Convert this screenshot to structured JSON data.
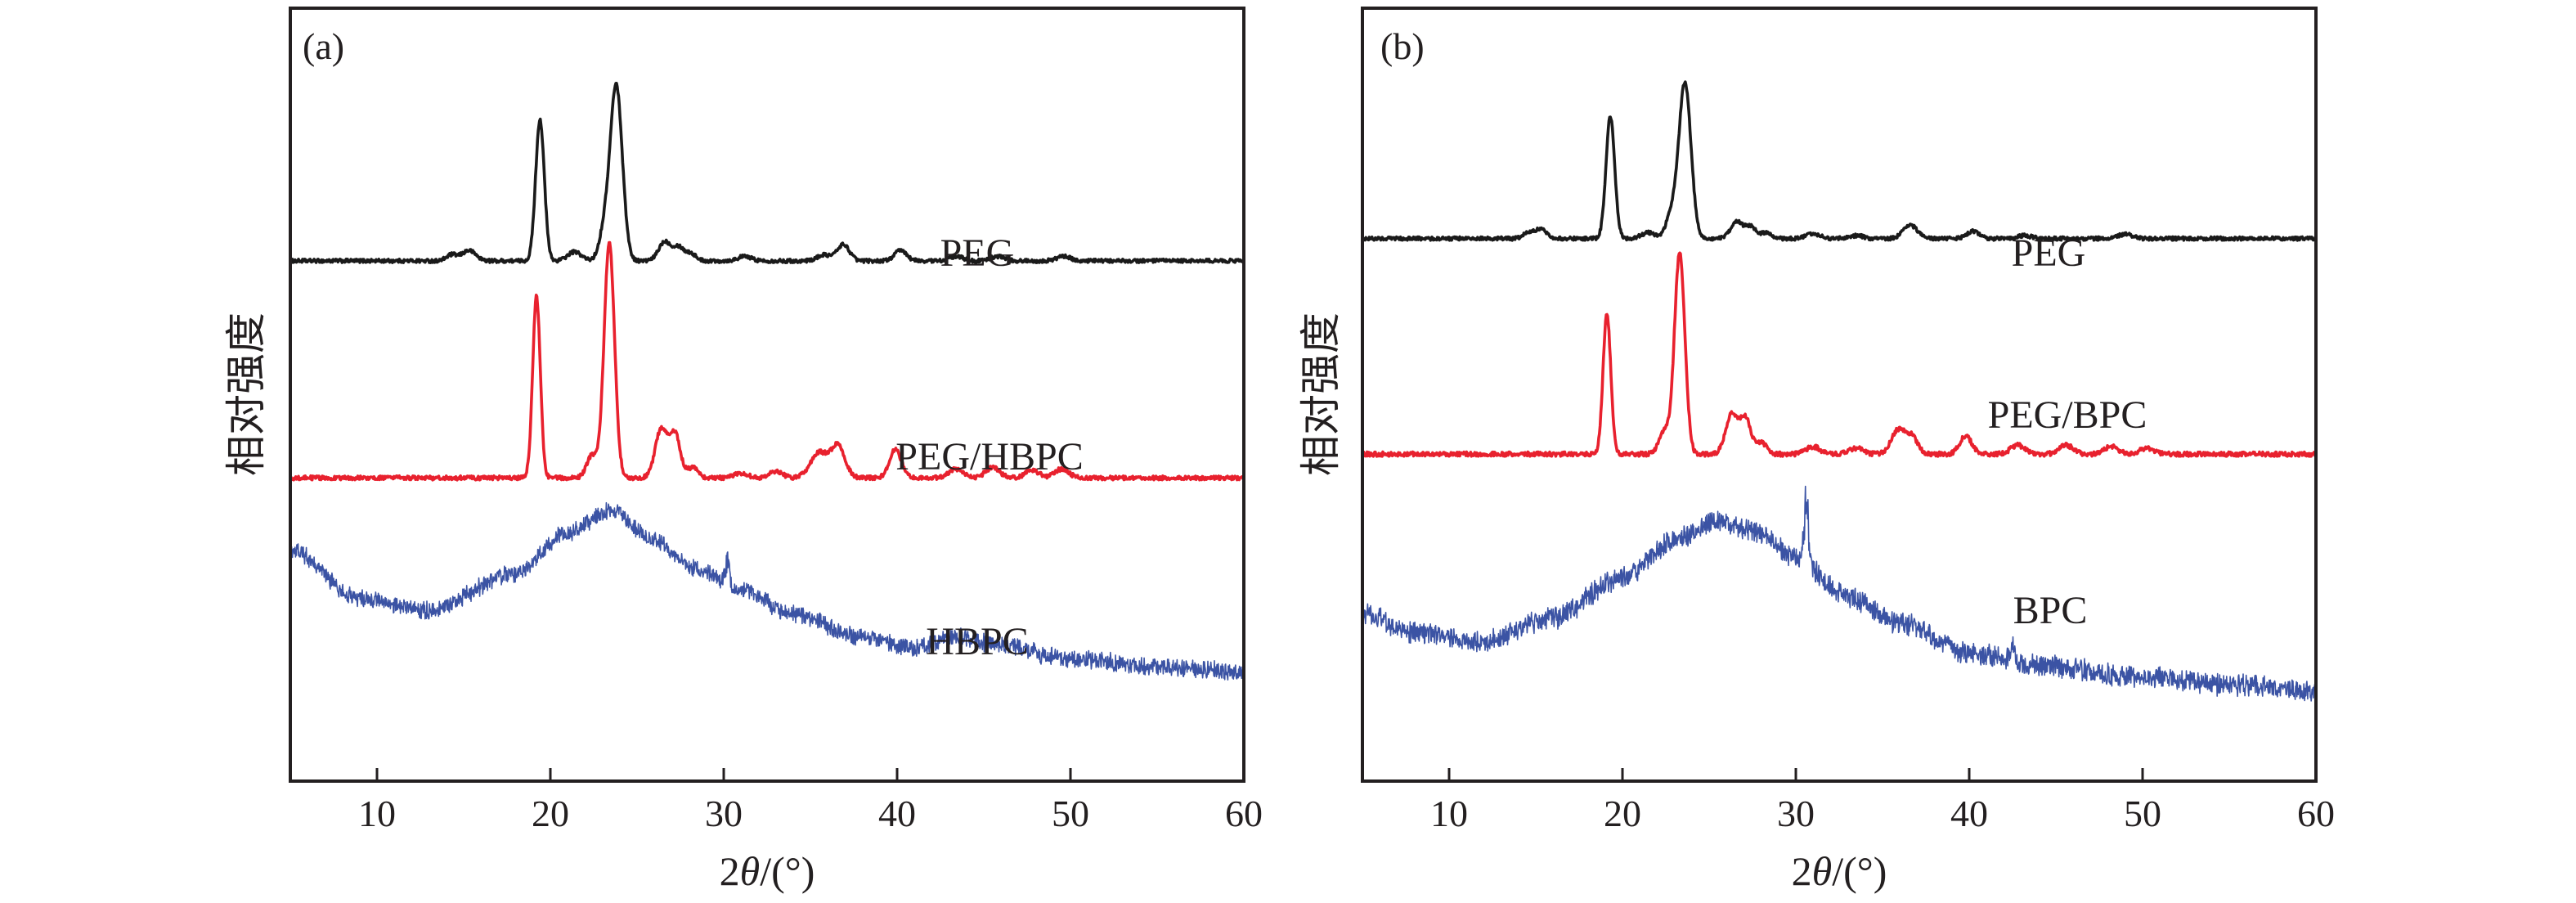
{
  "chart_data": [
    {
      "panel": "a",
      "type": "line",
      "panel_label": "(a)",
      "xlabel": "2θ/(°)",
      "xlabel_parts": {
        "prefix": "2",
        "italic": "θ",
        "suffix": "/(°)"
      },
      "ylabel": "相对强度",
      "xlim": [
        5,
        60
      ],
      "xticks": [
        10,
        20,
        30,
        40,
        50,
        60
      ],
      "y_axis": "arbitrary units, no tick labels; traces vertically offset",
      "grid": false,
      "series": [
        {
          "name": "PEG",
          "color": "#1a1a1a",
          "style": "crystalline",
          "baseline": 0.0,
          "peaks": [
            [
              14.3,
              0.04,
              0.3
            ],
            [
              15.3,
              0.07,
              0.4
            ],
            [
              19.4,
              0.95,
              0.25
            ],
            [
              21.4,
              0.06,
              0.4
            ],
            [
              23.8,
              1.18,
              0.35
            ],
            [
              23.1,
              0.18,
              0.3
            ],
            [
              26.6,
              0.13,
              0.35
            ],
            [
              27.4,
              0.09,
              0.3
            ],
            [
              28.1,
              0.05,
              0.3
            ],
            [
              31.2,
              0.03,
              0.4
            ],
            [
              35.8,
              0.04,
              0.4
            ],
            [
              36.9,
              0.11,
              0.35
            ],
            [
              40.2,
              0.07,
              0.35
            ],
            [
              43.4,
              0.03,
              0.4
            ],
            [
              45.8,
              0.03,
              0.4
            ],
            [
              49.6,
              0.03,
              0.4
            ]
          ],
          "noise": 0.012
        },
        {
          "name": "PEG/HBPC",
          "color": "#e8212e",
          "style": "crystalline",
          "baseline": -1.46,
          "peaks": [
            [
              19.2,
              1.22,
              0.22
            ],
            [
              23.4,
              1.58,
              0.3
            ],
            [
              22.4,
              0.15,
              0.3
            ],
            [
              26.4,
              0.33,
              0.35
            ],
            [
              27.2,
              0.29,
              0.3
            ],
            [
              28.2,
              0.07,
              0.3
            ],
            [
              31.0,
              0.03,
              0.4
            ],
            [
              33.0,
              0.04,
              0.4
            ],
            [
              35.5,
              0.17,
              0.5
            ],
            [
              36.6,
              0.21,
              0.4
            ],
            [
              39.9,
              0.19,
              0.35
            ],
            [
              43.4,
              0.06,
              0.4
            ],
            [
              45.5,
              0.07,
              0.4
            ],
            [
              47.8,
              0.05,
              0.4
            ],
            [
              49.5,
              0.06,
              0.4
            ]
          ],
          "noise": 0.014
        },
        {
          "name": "HBPC",
          "color": "#3b53a4",
          "style": "amorphous",
          "baseline": -2.65,
          "hump": [
            [
              5,
              0.7
            ],
            [
              9,
              0.38
            ],
            [
              13,
              0.3
            ],
            [
              18,
              0.55
            ],
            [
              21,
              0.82
            ],
            [
              23.5,
              0.97
            ],
            [
              26,
              0.77
            ],
            [
              28.5,
              0.57
            ],
            [
              31,
              0.43
            ],
            [
              34,
              0.28
            ],
            [
              38,
              0.12
            ],
            [
              41,
              0.04
            ],
            [
              43.5,
              0.13
            ],
            [
              46,
              0.06
            ],
            [
              50,
              -0.03
            ],
            [
              55,
              -0.08
            ],
            [
              60,
              -0.11
            ]
          ],
          "spikes": [
            [
              30.2,
              0.17
            ]
          ],
          "noise": 0.05
        }
      ],
      "ylim": [
        -3.5,
        1.7
      ]
    },
    {
      "panel": "b",
      "type": "line",
      "panel_label": "(b)",
      "xlabel": "2θ/(°)",
      "xlabel_parts": {
        "prefix": "2",
        "italic": "θ",
        "suffix": "/(°)"
      },
      "ylabel": "相对强度",
      "xlim": [
        5,
        60
      ],
      "xticks": [
        10,
        20,
        30,
        40,
        50,
        60
      ],
      "y_axis": "arbitrary units, no tick labels; traces vertically offset",
      "grid": false,
      "series": [
        {
          "name": "PEG",
          "color": "#1a1a1a",
          "style": "crystalline",
          "baseline": 0.0,
          "peaks": [
            [
              14.6,
              0.04,
              0.3
            ],
            [
              15.3,
              0.06,
              0.35
            ],
            [
              19.3,
              0.82,
              0.25
            ],
            [
              21.5,
              0.04,
              0.4
            ],
            [
              23.6,
              1.05,
              0.35
            ],
            [
              22.8,
              0.15,
              0.3
            ],
            [
              26.6,
              0.11,
              0.35
            ],
            [
              27.4,
              0.08,
              0.3
            ],
            [
              28.3,
              0.04,
              0.3
            ],
            [
              31.0,
              0.03,
              0.4
            ],
            [
              33.5,
              0.02,
              0.4
            ],
            [
              36.6,
              0.09,
              0.4
            ],
            [
              40.2,
              0.05,
              0.35
            ],
            [
              43.2,
              0.02,
              0.4
            ],
            [
              49.0,
              0.03,
              0.4
            ]
          ],
          "noise": 0.012
        },
        {
          "name": "PEG/BPC",
          "color": "#e8212e",
          "style": "crystalline",
          "baseline": -1.45,
          "peaks": [
            [
              19.1,
              0.95,
              0.22
            ],
            [
              23.3,
              1.35,
              0.3
            ],
            [
              22.4,
              0.15,
              0.3
            ],
            [
              26.3,
              0.27,
              0.35
            ],
            [
              27.1,
              0.24,
              0.3
            ],
            [
              28.0,
              0.08,
              0.3
            ],
            [
              31.0,
              0.05,
              0.4
            ],
            [
              33.5,
              0.04,
              0.4
            ],
            [
              35.9,
              0.16,
              0.4
            ],
            [
              36.7,
              0.11,
              0.35
            ],
            [
              39.8,
              0.12,
              0.35
            ],
            [
              42.8,
              0.06,
              0.4
            ],
            [
              45.6,
              0.06,
              0.4
            ],
            [
              48.2,
              0.05,
              0.4
            ],
            [
              50.2,
              0.04,
              0.4
            ]
          ],
          "noise": 0.015
        },
        {
          "name": "BPC",
          "color": "#3b53a4",
          "style": "amorphous",
          "baseline": -2.85,
          "hump": [
            [
              5,
              0.32
            ],
            [
              8,
              0.2
            ],
            [
              12,
              0.14
            ],
            [
              16,
              0.3
            ],
            [
              20,
              0.57
            ],
            [
              23,
              0.82
            ],
            [
              25.5,
              0.95
            ],
            [
              28,
              0.86
            ],
            [
              30,
              0.7
            ],
            [
              33,
              0.44
            ],
            [
              36,
              0.26
            ],
            [
              40,
              0.06
            ],
            [
              44,
              -0.02
            ],
            [
              50,
              -0.1
            ],
            [
              55,
              -0.15
            ],
            [
              60,
              -0.2
            ]
          ],
          "spikes": [
            [
              30.6,
              0.38
            ],
            [
              42.5,
              0.1
            ]
          ],
          "noise": 0.06
        }
      ],
      "ylim": [
        -3.65,
        1.55
      ]
    }
  ]
}
